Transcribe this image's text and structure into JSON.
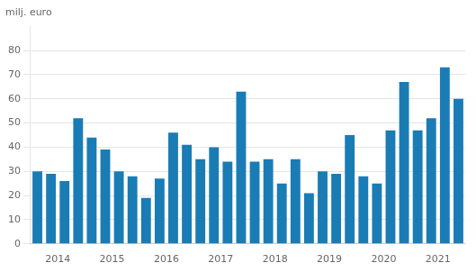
{
  "chart_data": {
    "type": "bar",
    "ylabel": "milj. euro",
    "categories": [
      null,
      "2014",
      null,
      null,
      null,
      "2015",
      null,
      null,
      null,
      "2016",
      null,
      null,
      null,
      "2017",
      null,
      null,
      null,
      "2018",
      null,
      null,
      null,
      "2019",
      null,
      null,
      null,
      "2020",
      null,
      null,
      null,
      "2021",
      null,
      null
    ],
    "values": [
      30,
      29,
      26,
      52,
      44,
      39,
      30,
      28,
      19,
      27,
      46,
      41,
      35,
      40,
      34,
      63,
      34,
      35,
      25,
      35,
      21,
      30,
      29,
      45,
      28,
      25,
      47,
      67,
      47,
      52,
      73,
      60
    ],
    "color": "#1a7cb5",
    "ylim": [
      0,
      90
    ],
    "yticks": [
      0,
      10,
      20,
      30,
      40,
      50,
      60,
      70,
      80
    ],
    "grid": true
  }
}
